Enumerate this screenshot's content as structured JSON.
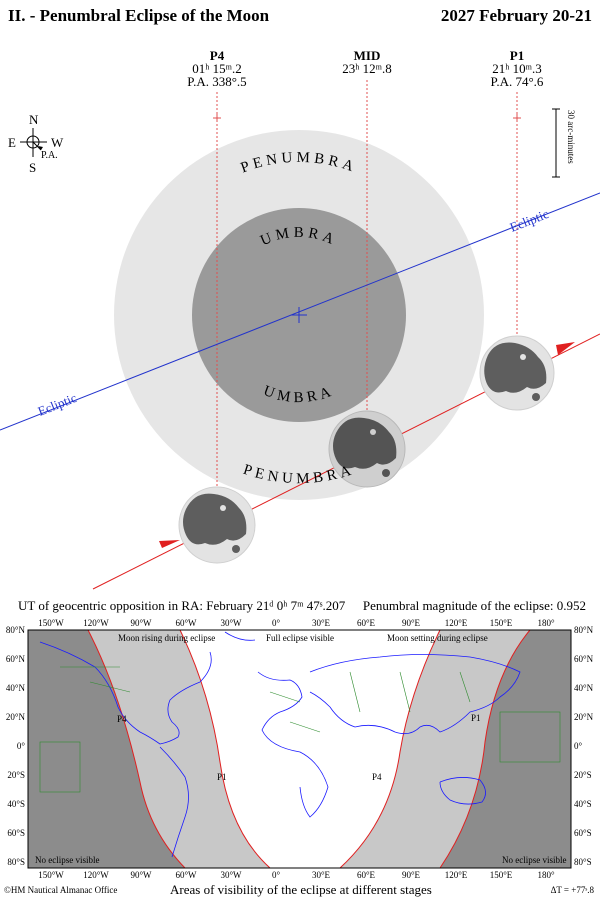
{
  "header": {
    "title": "II. - Penumbral Eclipse of the Moon",
    "date": "2027 February 20-21"
  },
  "contacts": [
    {
      "name": "P4",
      "time": "01ʰ 15ᵐ.2",
      "pa": "P.A. 338°.5"
    },
    {
      "name": "MID",
      "time": "23ʰ 12ᵐ.8",
      "pa": ""
    },
    {
      "name": "P1",
      "time": "21ʰ 10ᵐ.3",
      "pa": "P.A. 74°.6"
    }
  ],
  "compass": {
    "n": "N",
    "s": "S",
    "e": "E",
    "w": "W",
    "pa": "P.A."
  },
  "scale_label": "30 arc-minutes",
  "shadow_labels": {
    "penumbra": "PENUMBRA",
    "umbra": "UMBRA"
  },
  "ecliptic_label": "Ecliptic",
  "opposition": "UT of geocentric opposition in RA: February 21ᵈ 0ʰ 7ᵐ 47ˢ.207",
  "magnitude": "Penumbral magnitude of the eclipse: 0.952",
  "map": {
    "lon_labels": [
      "150°W",
      "120°W",
      "90°W",
      "60°W",
      "30°W",
      "0°",
      "30°E",
      "60°E",
      "90°E",
      "120°E",
      "150°E",
      "180°"
    ],
    "lat_labels": [
      "80°N",
      "60°N",
      "40°N",
      "20°N",
      "0°",
      "20°S",
      "40°S",
      "60°S",
      "80°S"
    ],
    "region_labels": {
      "rising": "Moon rising during eclipse",
      "full": "Full eclipse visible",
      "setting": "Moon setting during eclipse",
      "none_left": "No eclipse visible",
      "none_right": "No eclipse visible"
    },
    "curve_labels": [
      "P4",
      "P1",
      "P4",
      "P1"
    ],
    "colors": {
      "no_eclipse": "#8c8c8c",
      "partial": "#c8c8c8",
      "full": "#ffffff",
      "coast": "#1a1aff",
      "border": "#2e8b2e",
      "curve": "#e02020"
    }
  },
  "footer": {
    "credit": "©HM Nautical Almanac Office",
    "caption": "Areas of visibility of the eclipse at different stages",
    "delta_t": "ΔT = +77ˢ.8"
  }
}
